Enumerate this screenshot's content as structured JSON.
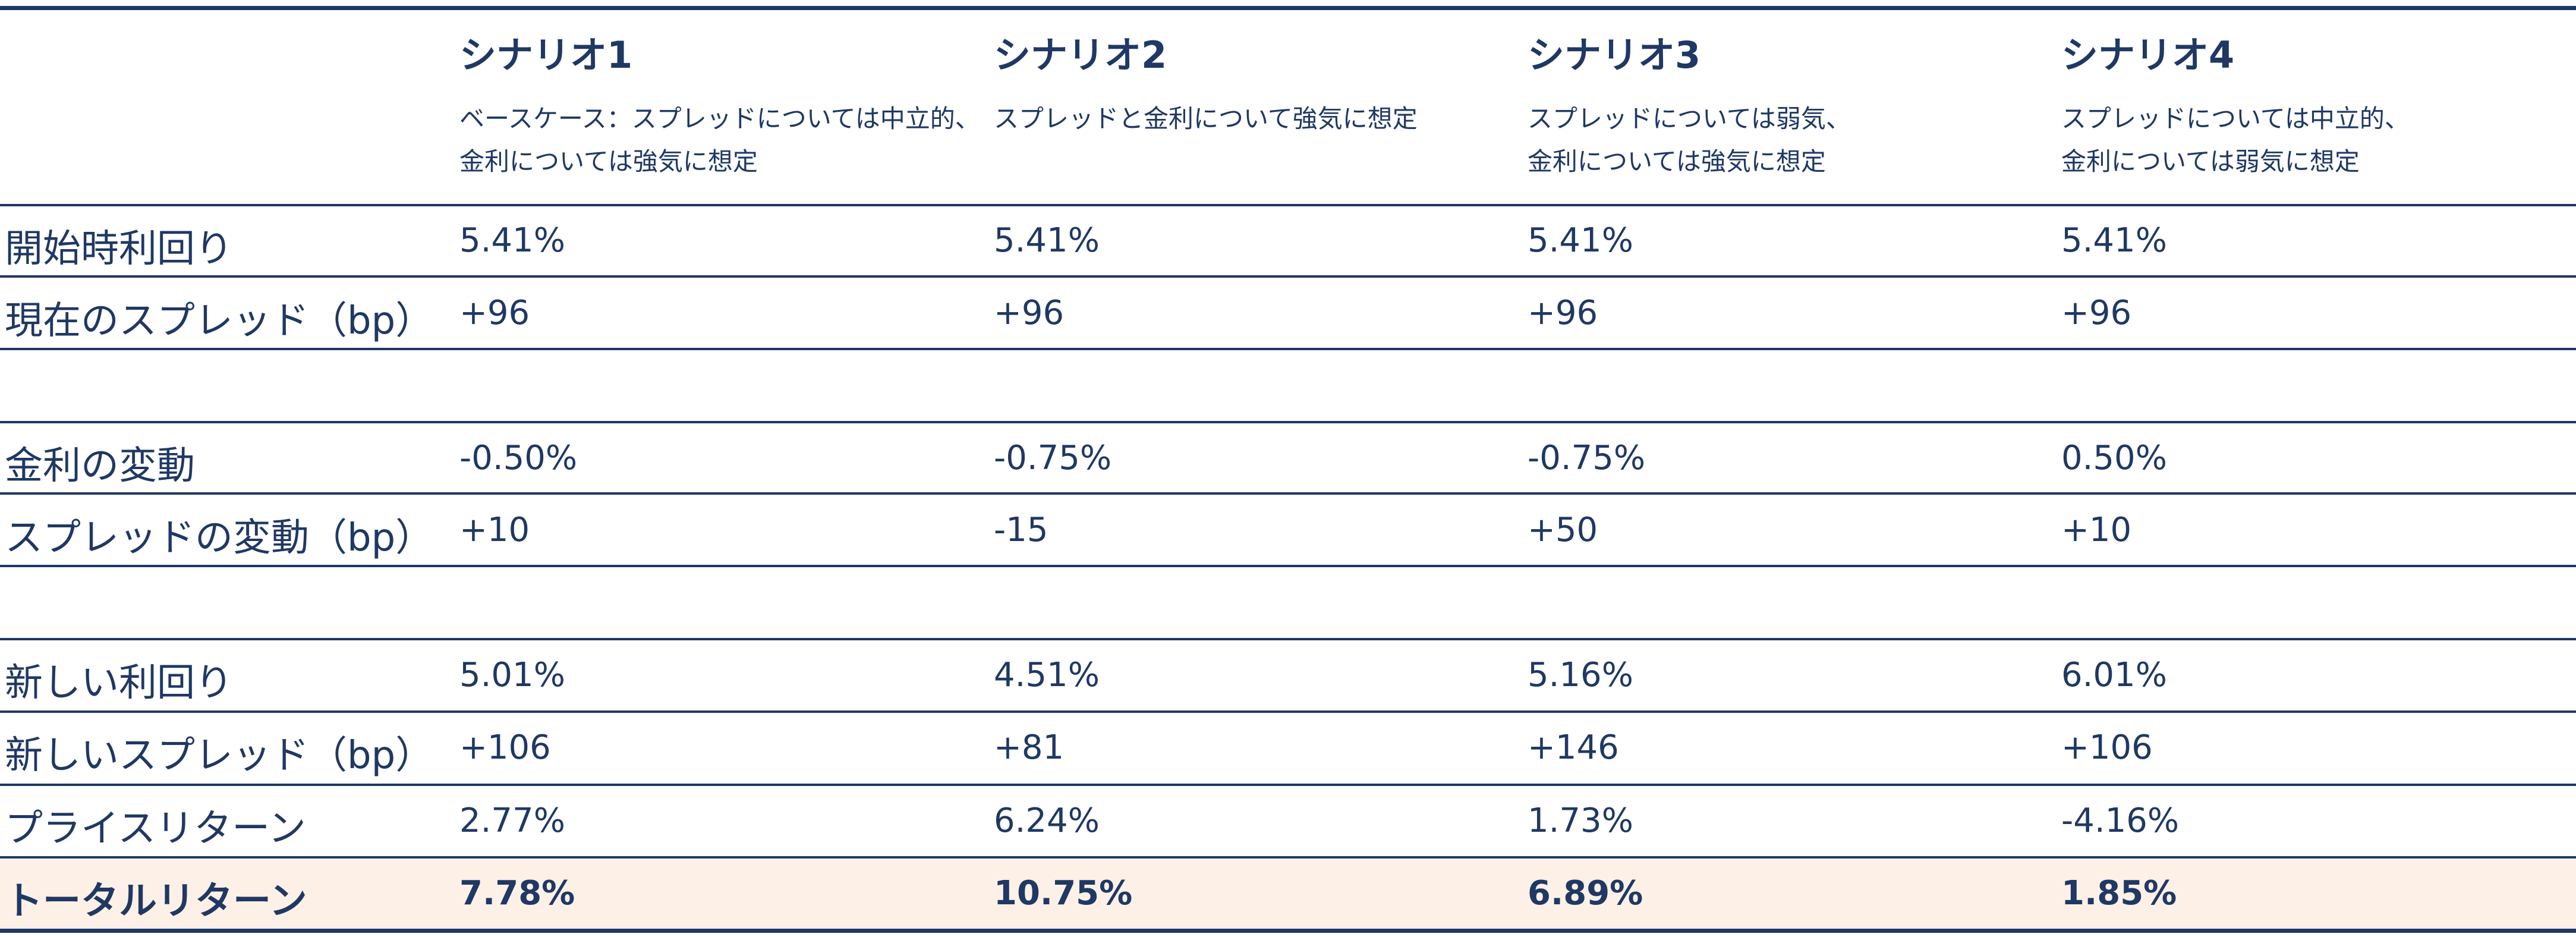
{
  "scenarios": [
    {
      "title": "シナリオ1",
      "desc": "ベースケース：スプレッドについては中立的、\n金利については強気に想定"
    },
    {
      "title": "シナリオ2",
      "desc": "スプレッドと金利について強気に想定"
    },
    {
      "title": "シナリオ3",
      "desc": "スプレッドについては弱気、\n金利については強気に想定"
    },
    {
      "title": "シナリオ4",
      "desc": "スプレッドについては中立的、\n金利については弱気に想定"
    }
  ],
  "rows": {
    "start_yield": {
      "label": "開始時利回り",
      "values": [
        "5.41%",
        "5.41%",
        "5.41%",
        "5.41%"
      ]
    },
    "current_spread": {
      "label": "現在のスプレッド（bp）",
      "values": [
        "+96",
        "+96",
        "+96",
        "+96"
      ]
    },
    "rate_change": {
      "label": "金利の変動",
      "values": [
        "-0.50%",
        "-0.75%",
        "-0.75%",
        "0.50%"
      ]
    },
    "spread_change": {
      "label": "スプレッドの変動（bp）",
      "values": [
        "+10",
        "-15",
        "+50",
        "+10"
      ]
    },
    "new_yield": {
      "label": "新しい利回り",
      "values": [
        "5.01%",
        "4.51%",
        "5.16%",
        "6.01%"
      ]
    },
    "new_spread": {
      "label": "新しいスプレッド（bp）",
      "values": [
        "+106",
        "+81",
        "+146",
        "+106"
      ]
    },
    "price_return": {
      "label": "プライスリターン",
      "values": [
        "2.77%",
        "6.24%",
        "1.73%",
        "-4.16%"
      ]
    },
    "total_return": {
      "label": "トータルリターン",
      "values": [
        "7.78%",
        "10.75%",
        "6.89%",
        "1.85%"
      ]
    }
  },
  "colors": {
    "text": "#1f3864",
    "rule": "#1f3864",
    "highlight": "#fdf0e6"
  }
}
